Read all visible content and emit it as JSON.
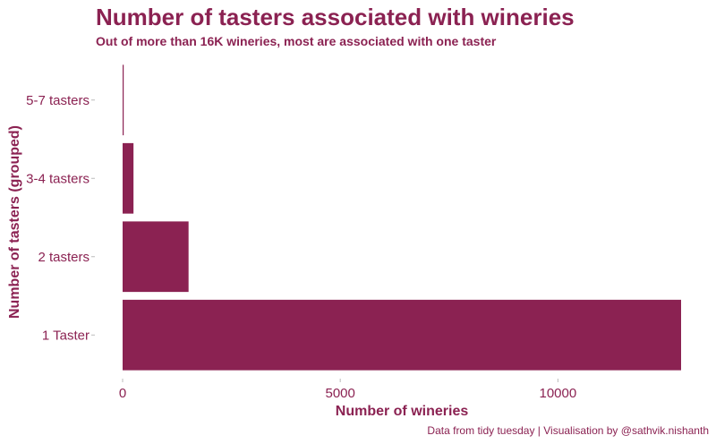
{
  "chart_data": {
    "type": "bar",
    "orientation": "horizontal",
    "title": "Number of tasters associated with wineries",
    "subtitle": "Out of more than 16K wineries, most are associated with one taster",
    "xlabel": "Number of wineries",
    "ylabel": "Number of tasters (grouped)",
    "categories": [
      "1 Taster",
      "2 tasters",
      "3-4 tasters",
      "5-7 tasters"
    ],
    "values": [
      12830,
      1515,
      250,
      15
    ],
    "xlim": [
      0,
      12830
    ],
    "xticks": [
      "0",
      "5000",
      "10000"
    ],
    "bar_color": "#8b2252",
    "grid": false
  },
  "caption": "Data from tidy tuesday | Visualisation by @sathvik.nishanth"
}
